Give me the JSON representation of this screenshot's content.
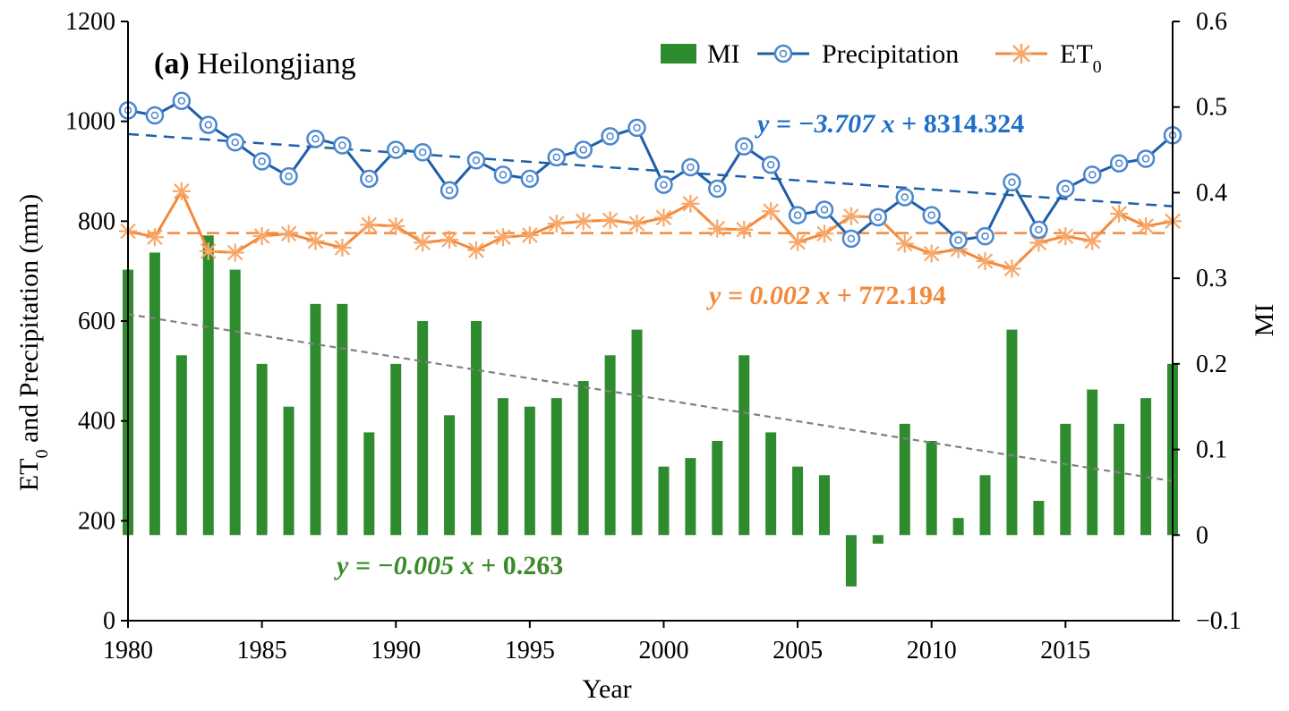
{
  "chart_data": {
    "type": "bar+line",
    "title_prefix": "(a)",
    "title": "Heilongjiang",
    "xlabel": "Year",
    "ylabel_left": "ET0 and Precipitation (mm)",
    "ylabel_left_main": "ET",
    "ylabel_left_sub": "0",
    "ylabel_left_rest": " and Precipitation (mm)",
    "ylabel_right": "MI",
    "xlim": [
      1980,
      2019
    ],
    "ylim_left": [
      0,
      1200
    ],
    "ylim_right": [
      -0.1,
      0.6
    ],
    "x_ticks": [
      1980,
      1985,
      1990,
      1995,
      2000,
      2005,
      2010,
      2015
    ],
    "x_tick_labels": [
      "1980",
      "1985",
      "1990",
      "1995",
      "2000",
      "2005",
      "2010",
      "2015"
    ],
    "y_left_ticks": [
      0,
      200,
      400,
      600,
      800,
      1000,
      1200
    ],
    "y_left_tick_labels": [
      "0",
      "200",
      "400",
      "600",
      "800",
      "1000",
      "1200"
    ],
    "y_right_ticks": [
      -0.1,
      0,
      0.1,
      0.2,
      0.3,
      0.4,
      0.5,
      0.6
    ],
    "y_right_tick_labels": [
      "−0.1",
      "0",
      "0.1",
      "0.2",
      "0.3",
      "0.4",
      "0.5",
      "0.6"
    ],
    "years": [
      1980,
      1981,
      1982,
      1983,
      1984,
      1985,
      1986,
      1987,
      1988,
      1989,
      1990,
      1991,
      1992,
      1993,
      1994,
      1995,
      1996,
      1997,
      1998,
      1999,
      2000,
      2001,
      2002,
      2003,
      2004,
      2005,
      2006,
      2007,
      2008,
      2009,
      2010,
      2011,
      2012,
      2013,
      2014,
      2015,
      2016,
      2017,
      2018,
      2019
    ],
    "series": [
      {
        "name": "MI",
        "type": "bar",
        "axis": "right",
        "color": "#2e8b2e",
        "values": [
          0.31,
          0.33,
          0.21,
          0.35,
          0.31,
          0.2,
          0.15,
          0.27,
          0.27,
          0.12,
          0.2,
          0.25,
          0.14,
          0.25,
          0.16,
          0.15,
          0.16,
          0.18,
          0.21,
          0.24,
          0.08,
          0.09,
          0.11,
          0.21,
          0.12,
          0.08,
          0.07,
          -0.06,
          -0.01,
          0.13,
          0.11,
          0.02,
          0.07,
          0.24,
          0.04,
          0.13,
          0.17,
          0.13,
          0.16,
          0.2
        ]
      },
      {
        "name": "Precipitation",
        "type": "line",
        "axis": "left",
        "color": "#1f5fa8",
        "marker": "circle",
        "values": [
          1022,
          1012,
          1041,
          993,
          958,
          920,
          890,
          965,
          952,
          885,
          943,
          938,
          862,
          922,
          893,
          885,
          928,
          943,
          970,
          987,
          873,
          908,
          865,
          950,
          913,
          812,
          823,
          765,
          808,
          848,
          812,
          762,
          770,
          878,
          783,
          865,
          893,
          916,
          925,
          972
        ]
      },
      {
        "name": "ET",
        "name_sub": "0",
        "type": "line",
        "axis": "left",
        "color": "#f28a3c",
        "marker": "asterisk",
        "values": [
          780,
          768,
          860,
          740,
          737,
          770,
          775,
          760,
          747,
          793,
          790,
          757,
          763,
          742,
          768,
          772,
          795,
          800,
          802,
          795,
          807,
          835,
          785,
          783,
          820,
          758,
          775,
          810,
          808,
          755,
          735,
          744,
          720,
          705,
          757,
          770,
          760,
          815,
          790,
          800
        ]
      }
    ],
    "trendlines": [
      {
        "series": "Precipitation",
        "slope": -3.707,
        "intercept": 8314.324,
        "color": "#1f5fa8",
        "eq_prefix": "y = −3.707 ",
        "eq_var": "x",
        "eq_suffix": " + 8314.324"
      },
      {
        "series": "ET0",
        "slope": 0.002,
        "intercept": 772.194,
        "color": "#f28a3c",
        "eq_prefix": "y = 0.002 ",
        "eq_var": "x",
        "eq_suffix": " + 772.194"
      },
      {
        "series": "MI",
        "slope": -0.005,
        "intercept": 0.263,
        "color": "#808080",
        "eq_color": "#3a8a2a",
        "eq_prefix": "y = −0.005 ",
        "eq_var": "x",
        "eq_suffix": " + 0.263"
      }
    ],
    "legend_position": "top-right"
  }
}
